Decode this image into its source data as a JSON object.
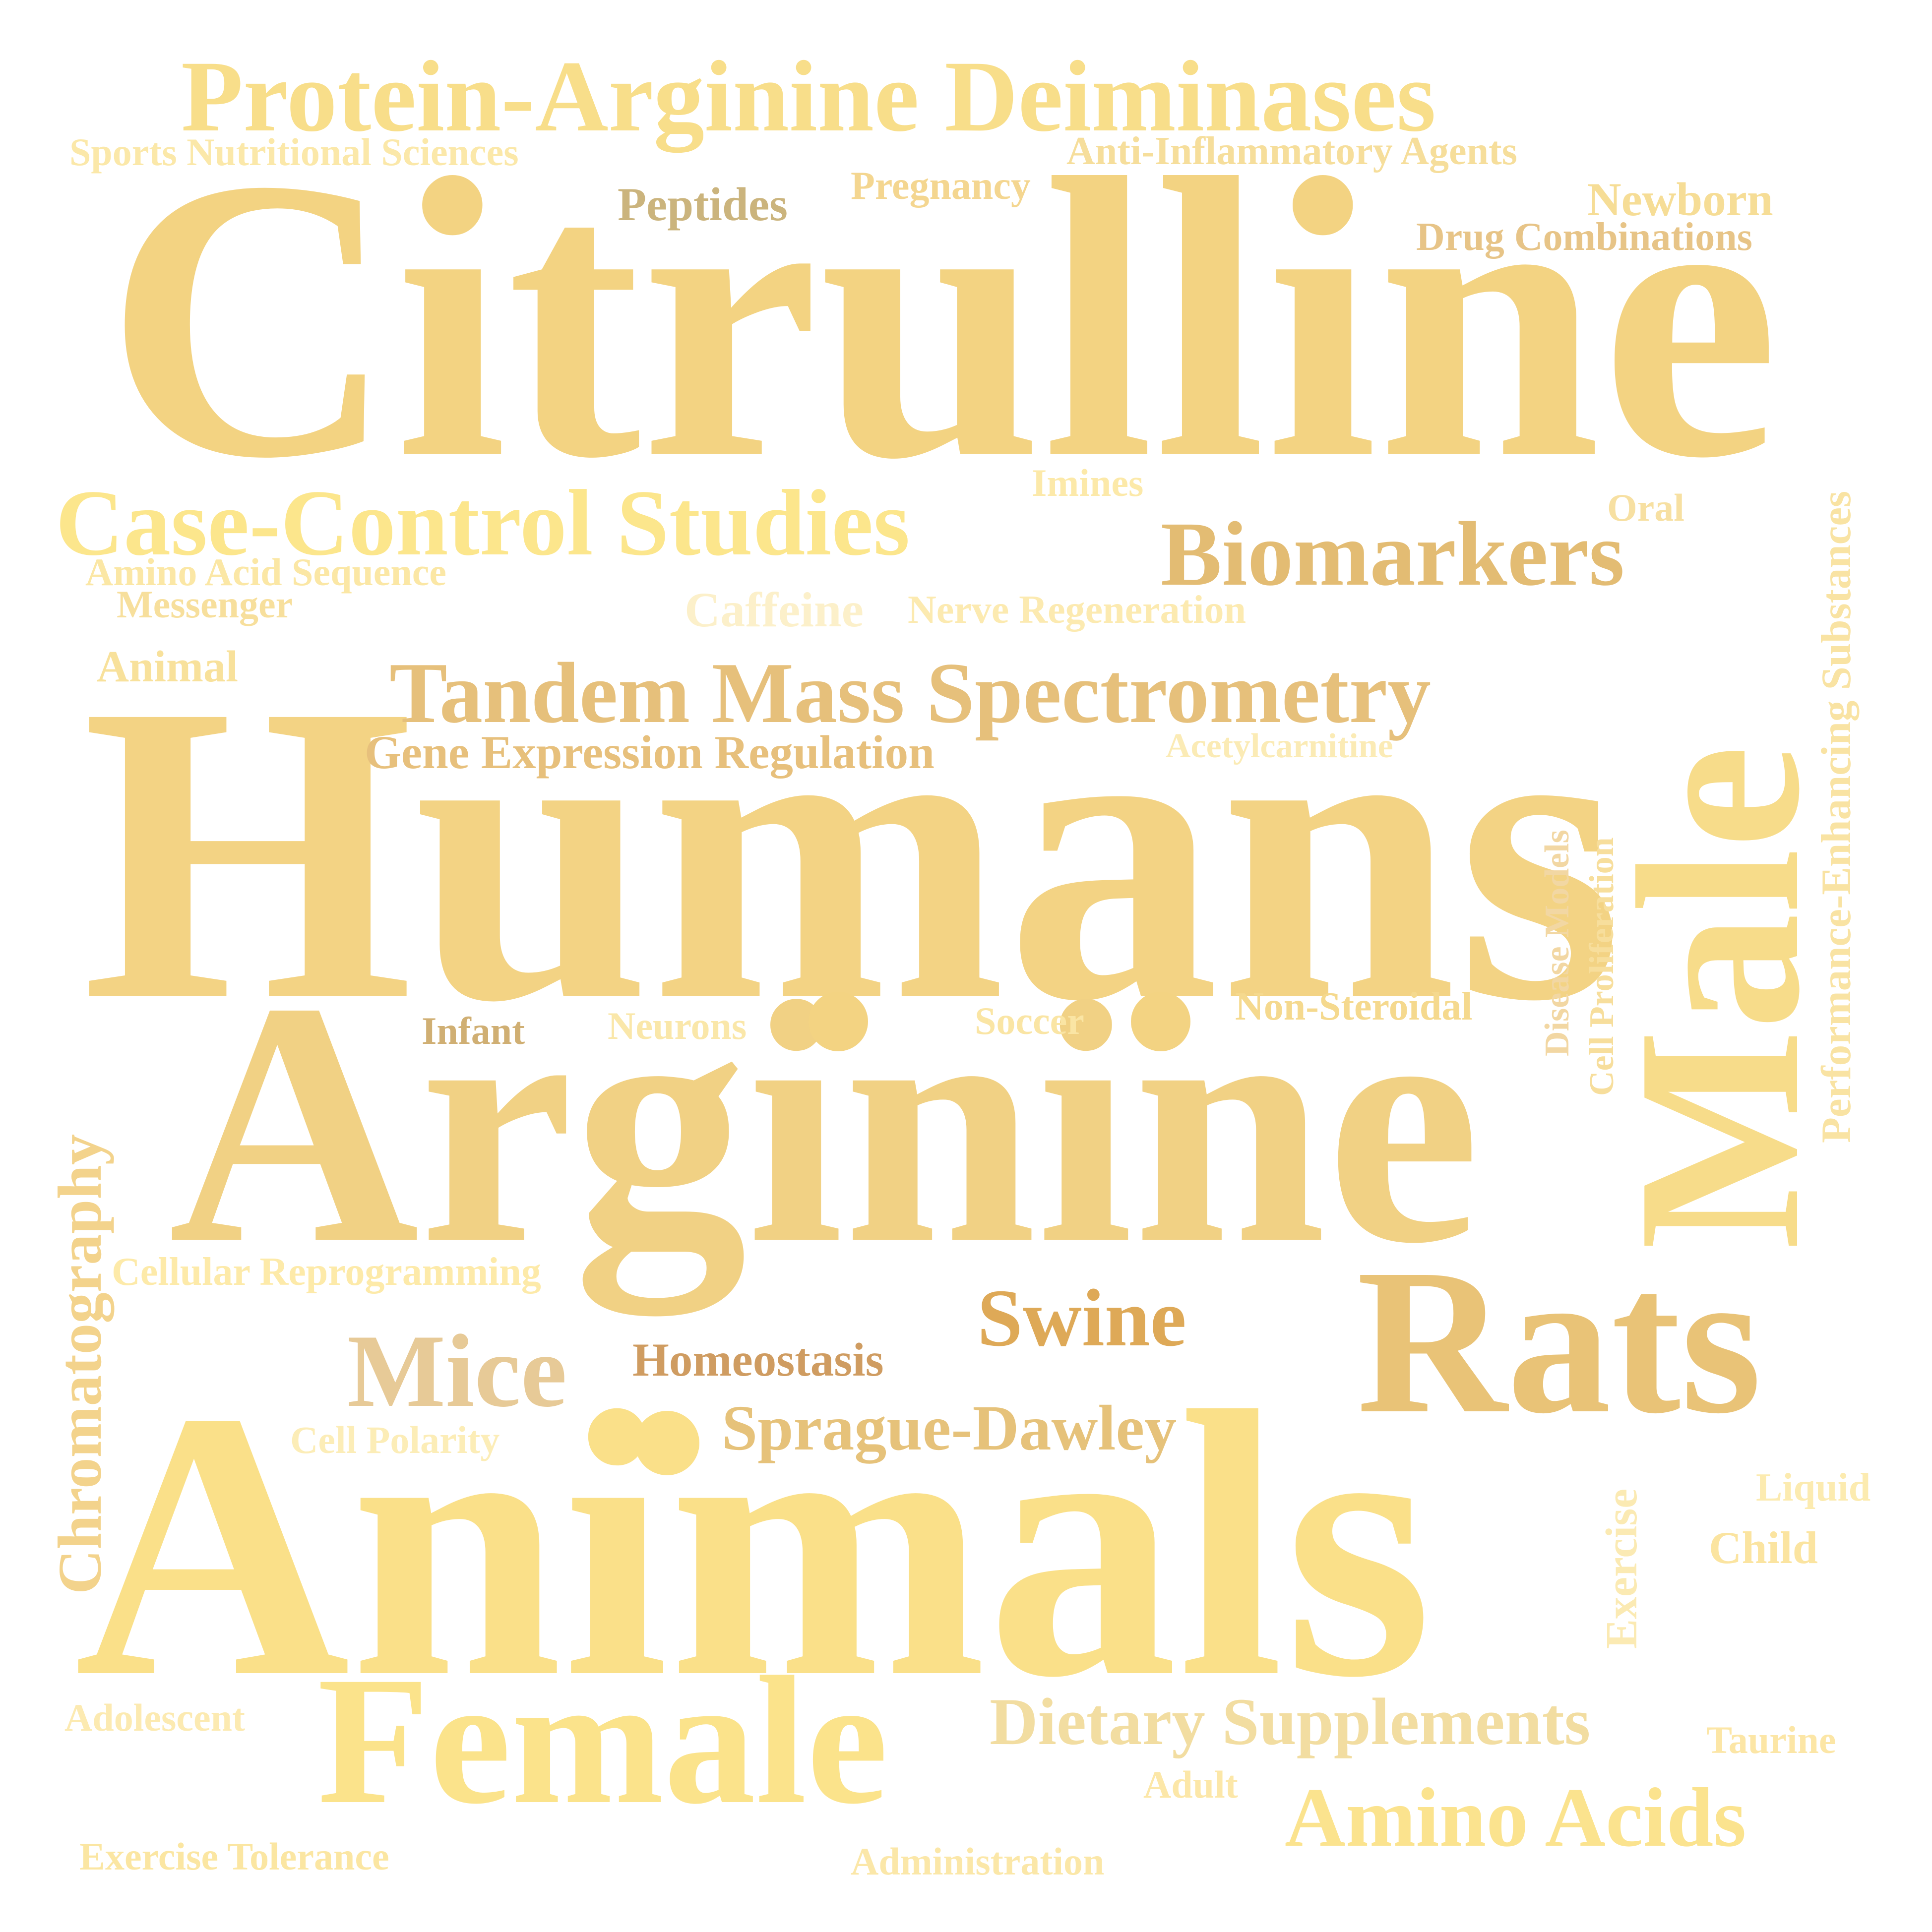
{
  "words": [
    {
      "text": "Citrulline",
      "color": "#F3D382",
      "weight": 1.0
    },
    {
      "text": "Humans",
      "color": "#F3D384",
      "weight": 0.95
    },
    {
      "text": "Arginine",
      "color": "#F1D184",
      "weight": 0.9
    },
    {
      "text": "Animals",
      "color": "#FAE089",
      "weight": 0.9
    },
    {
      "text": "Male",
      "color": "#F7DC8A",
      "weight": 0.6
    },
    {
      "text": "Rats",
      "color": "#E9C377",
      "weight": 0.55
    },
    {
      "text": "Female",
      "color": "#FBE38B",
      "weight": 0.5
    },
    {
      "text": "Protein-Arginine Deiminases",
      "color": "#F8DE8A",
      "weight": 0.35
    },
    {
      "text": "Case-Control Studies",
      "color": "#FCE68C",
      "weight": 0.3
    },
    {
      "text": "Biomarkers",
      "color": "#E3BC73",
      "weight": 0.3
    },
    {
      "text": "Tandem Mass Spectrometry",
      "color": "#E6C07B",
      "weight": 0.28
    },
    {
      "text": "Mice",
      "color": "#E7CA97",
      "weight": 0.3
    },
    {
      "text": "Swine",
      "color": "#DEA957",
      "weight": 0.22
    },
    {
      "text": "Dietary Supplements",
      "color": "#F2DDA1",
      "weight": 0.2
    },
    {
      "text": "Amino Acids",
      "color": "#FBE38E",
      "weight": 0.22
    },
    {
      "text": "Sprague-Dawley",
      "color": "#E6C27A",
      "weight": 0.16
    },
    {
      "text": "Chromatography",
      "color": "#F3D38C",
      "weight": 0.16
    },
    {
      "text": "Performance-Enhancing Substances",
      "color": "#F9E3A3",
      "weight": 0.12
    },
    {
      "text": "Gene Expression Regulation",
      "color": "#E7C07C",
      "weight": 0.12
    },
    {
      "text": "Newborn",
      "color": "#F6DD96",
      "weight": 0.1
    },
    {
      "text": "Peptides",
      "color": "#CBB47D",
      "weight": 0.1
    },
    {
      "text": "Homeostasis",
      "color": "#CF9C61",
      "weight": 0.1
    },
    {
      "text": "Sports Nutritional Sciences",
      "color": "#FBE8A9",
      "weight": 0.08
    },
    {
      "text": "Anti-Inflammatory Agents",
      "color": "#F6DE9B",
      "weight": 0.08
    },
    {
      "text": "Pregnancy",
      "color": "#F4D690",
      "weight": 0.08
    },
    {
      "text": "Drug Combinations",
      "color": "#E7C487",
      "weight": 0.08
    },
    {
      "text": "Imines",
      "color": "#FCE9A9",
      "weight": 0.08
    },
    {
      "text": "Oral",
      "color": "#F7E0A2",
      "weight": 0.08
    },
    {
      "text": "Amino Acid Sequence",
      "color": "#FBE7A5",
      "weight": 0.08
    },
    {
      "text": "Messenger",
      "color": "#F7DF9C",
      "weight": 0.08
    },
    {
      "text": "Caffeine",
      "color": "#FCF0CA",
      "weight": 0.1
    },
    {
      "text": "Nerve Regeneration",
      "color": "#FCEAB0",
      "weight": 0.08
    },
    {
      "text": "Animal",
      "color": "#F8E19B",
      "weight": 0.09
    },
    {
      "text": "Acetylcarnitine",
      "color": "#FBEBB5",
      "weight": 0.07
    },
    {
      "text": "Disease Models",
      "color": "#F2D7A3",
      "weight": 0.07
    },
    {
      "text": "Cell Proliferation",
      "color": "#F7DE9C",
      "weight": 0.07
    },
    {
      "text": "Infant",
      "color": "#D0AF73",
      "weight": 0.08
    },
    {
      "text": "Neurons",
      "color": "#FAE7A9",
      "weight": 0.08
    },
    {
      "text": "Soccer",
      "color": "#FAE5A4",
      "weight": 0.08
    },
    {
      "text": "Non-Steroidal",
      "color": "#F5D98E",
      "weight": 0.08
    },
    {
      "text": "Cellular Reprogramming",
      "color": "#FDEAA9",
      "weight": 0.08
    },
    {
      "text": "Cell Polarity",
      "color": "#FCEDB7",
      "weight": 0.07
    },
    {
      "text": "Exercise",
      "color": "#FBEAB3",
      "weight": 0.09
    },
    {
      "text": "Liquid",
      "color": "#FCEBB0",
      "weight": 0.07
    },
    {
      "text": "Child",
      "color": "#FBE4A0",
      "weight": 0.08
    },
    {
      "text": "Adolescent",
      "color": "#FCEAB1",
      "weight": 0.07
    },
    {
      "text": "Taurine",
      "color": "#FCE6A6",
      "weight": 0.07
    },
    {
      "text": "Adult",
      "color": "#FCE7A8",
      "weight": 0.07
    },
    {
      "text": "Exercise Tolerance",
      "color": "#FBE6A2",
      "weight": 0.07
    },
    {
      "text": "Administration",
      "color": "#FBE7A8",
      "weight": 0.07
    }
  ],
  "dot_color": "#F3D382"
}
